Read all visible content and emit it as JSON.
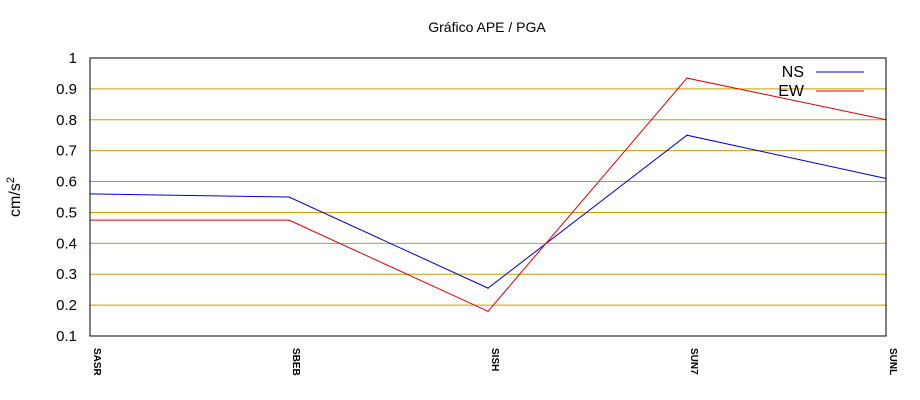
{
  "chart_data": {
    "type": "line",
    "title": "Gráfico  APE / PGA",
    "xlabel": "",
    "ylabel": "cm/s",
    "ylabel_superscript": "2",
    "categories": [
      "SASR",
      "SBEB",
      "SISH",
      "SUN7",
      "SUNL"
    ],
    "ylim": [
      0.1,
      1.0
    ],
    "yticks": [
      "0.1",
      "0.2",
      "0.3",
      "0.4",
      "0.5",
      "0.6",
      "0.7",
      "0.8",
      "0.9",
      "1"
    ],
    "grid": true,
    "grid_color": "#c8a000",
    "legend_position": "top-right",
    "series": [
      {
        "name": "NS",
        "color": "#0000cc",
        "values": [
          0.56,
          0.55,
          0.255,
          0.75,
          0.61
        ]
      },
      {
        "name": "EW",
        "color": "#dd0000",
        "values": [
          0.475,
          0.475,
          0.18,
          0.935,
          0.8
        ]
      }
    ]
  }
}
